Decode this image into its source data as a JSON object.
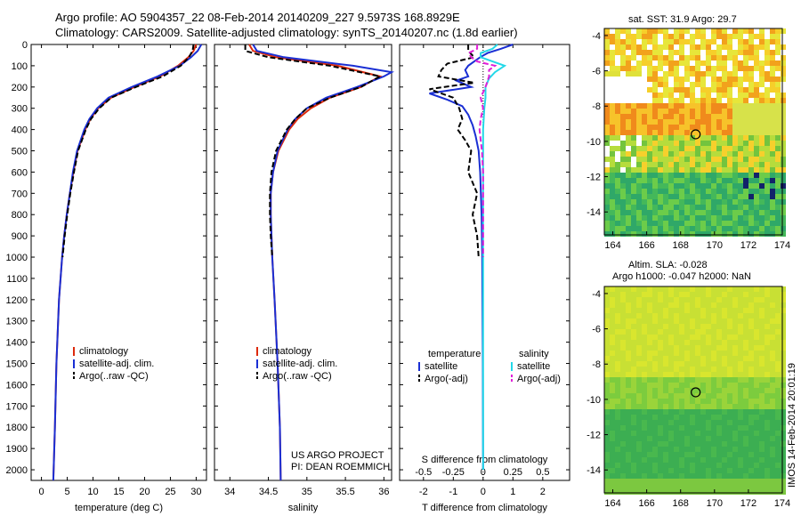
{
  "header": {
    "title_line1": "Argo profile: AO 5904357_22 08-Feb-2014 20140209_227 9.5973S 168.8929E",
    "title_line2": "Climatology: CARS2009. Satellite-adjusted climatology: synTS_20140207.nc (1.8d earlier)"
  },
  "colors": {
    "climatology": "#dd2a0c",
    "satellite": "#1a2fd4",
    "argo": "#000000",
    "sat_salinity": "#22d8e8",
    "argo_salinity": "#e020d8"
  },
  "chart_data": [
    {
      "type": "line",
      "panel": "temperature",
      "xlabel": "temperature (deg C)",
      "xlim": [
        -2,
        32
      ],
      "xticks": [
        0,
        5,
        10,
        15,
        20,
        25,
        30
      ],
      "ylim": [
        2050,
        0
      ],
      "yticks": [
        0,
        100,
        200,
        300,
        400,
        500,
        600,
        700,
        800,
        900,
        1000,
        1100,
        1200,
        1300,
        1400,
        1500,
        1600,
        1700,
        1800,
        1900,
        2000
      ],
      "legend": [
        "climatology",
        "satellite-adj. clim.",
        "Argo(..raw -QC)"
      ],
      "series": [
        {
          "name": "climatology",
          "style": "solid",
          "color": "#dd2a0c",
          "depth": [
            0,
            30,
            60,
            100,
            150,
            200,
            250,
            300,
            350,
            400,
            500,
            600,
            700,
            800,
            900,
            1000,
            1200,
            1500,
            1800,
            2050
          ],
          "values": [
            30,
            29.5,
            28.5,
            26.5,
            23,
            18,
            13.5,
            11,
            9.5,
            8.5,
            7,
            6.2,
            5.5,
            4.9,
            4.4,
            4,
            3.4,
            2.9,
            2.6,
            2.3
          ]
        },
        {
          "name": "satellite-adj. clim.",
          "style": "solid",
          "color": "#1a2fd4",
          "depth": [
            0,
            30,
            60,
            100,
            150,
            200,
            250,
            300,
            350,
            400,
            500,
            600,
            700,
            800,
            900,
            1000,
            1200,
            1500,
            1800,
            2050
          ],
          "values": [
            31,
            30.3,
            29,
            26.8,
            22.5,
            17.5,
            13,
            10.8,
            9.3,
            8.3,
            6.9,
            6.1,
            5.5,
            4.9,
            4.4,
            4,
            3.4,
            2.9,
            2.6,
            2.3
          ]
        },
        {
          "name": "Argo(..raw -QC)",
          "style": "dashed",
          "color": "#000000",
          "depth": [
            0,
            30,
            60,
            100,
            150,
            200,
            250,
            300,
            350,
            400,
            500,
            600,
            700,
            800,
            900,
            1000
          ],
          "values": [
            29.5,
            29.3,
            28.6,
            27,
            23.5,
            18.3,
            13.5,
            11.2,
            9.6,
            8.6,
            7.1,
            6.3,
            5.6,
            5,
            4.5,
            4.1
          ]
        }
      ]
    },
    {
      "type": "line",
      "panel": "salinity",
      "xlabel": "salinity",
      "xlim": [
        33.8,
        36.1
      ],
      "xticks": [
        34,
        34.5,
        35,
        35.5,
        36
      ],
      "ylim": [
        2050,
        0
      ],
      "legend": [
        "climatology",
        "satellite-adj. clim.",
        "Argo(..raw -QC)"
      ],
      "annotation": [
        "US ARGO PROJECT",
        "PI: DEAN ROEMMICH"
      ],
      "series": [
        {
          "name": "climatology",
          "style": "solid",
          "color": "#dd2a0c",
          "depth": [
            0,
            30,
            60,
            100,
            150,
            200,
            250,
            300,
            350,
            400,
            500,
            600,
            700,
            800,
            1000,
            1200,
            1500,
            1800,
            2050
          ],
          "values": [
            34.25,
            34.3,
            34.6,
            35.4,
            35.95,
            35.7,
            35.3,
            35.05,
            34.88,
            34.77,
            34.63,
            34.56,
            34.53,
            34.53,
            34.55,
            34.58,
            34.62,
            34.65,
            34.66
          ]
        },
        {
          "name": "satellite-adj. clim.",
          "style": "solid",
          "color": "#1a2fd4",
          "depth": [
            0,
            30,
            60,
            100,
            130,
            150,
            200,
            250,
            300,
            350,
            400,
            500,
            600,
            700,
            800,
            1000,
            1200,
            1500,
            1800,
            2050
          ],
          "values": [
            34.3,
            34.35,
            34.7,
            35.6,
            36.1,
            36.0,
            35.65,
            35.25,
            35.0,
            34.85,
            34.75,
            34.62,
            34.56,
            34.53,
            34.53,
            34.55,
            34.58,
            34.62,
            34.65,
            34.66
          ]
        },
        {
          "name": "Argo(..raw -QC)",
          "style": "dashed",
          "color": "#000000",
          "depth": [
            0,
            30,
            60,
            100,
            150,
            200,
            250,
            300,
            350,
            400,
            500,
            600,
            700,
            800,
            900,
            1000
          ],
          "values": [
            34.2,
            34.2,
            34.5,
            35.3,
            35.95,
            35.7,
            35.3,
            35.0,
            34.85,
            34.74,
            34.6,
            34.54,
            34.52,
            34.52,
            34.53,
            34.55
          ]
        }
      ]
    },
    {
      "type": "line",
      "panel": "difference",
      "xlabel": "T difference from climatology",
      "xlabel_top": "S difference from climatology",
      "xlim": [
        -2.8,
        2.9
      ],
      "xticks": [
        -2,
        -1,
        0,
        1,
        2
      ],
      "sticks_labels": [
        "-0.5",
        "-0.25",
        "0",
        "0.25",
        "0.5"
      ],
      "sticks_values": [
        -0.5,
        -0.25,
        0,
        0.25,
        0.5
      ],
      "ylim": [
        2050,
        0
      ],
      "legend_temperature_title": "temperature",
      "legend_salinity_title": "salinity",
      "legend": [
        "satellite",
        "Argo(-adj)",
        "satellite",
        "Argo(-adj)"
      ],
      "series": [
        {
          "name": "satellite",
          "quantity": "temperature",
          "style": "solid",
          "color": "#1a2fd4",
          "depth": [
            0,
            20,
            40,
            60,
            80,
            100,
            120,
            150,
            170,
            200,
            230,
            260,
            290,
            330,
            380,
            430,
            500,
            600,
            800,
            1000,
            1500,
            2000
          ],
          "values": [
            1,
            0.6,
            0.15,
            -0.1,
            -0.3,
            -0.5,
            -0.6,
            -0.5,
            -0.9,
            -0.4,
            -1.8,
            -1.2,
            -0.7,
            -0.5,
            -0.35,
            -0.25,
            -0.15,
            -0.1,
            -0.05,
            -0.03,
            -0.01,
            0
          ]
        },
        {
          "name": "Argo(-adj)",
          "quantity": "temperature",
          "style": "dashed",
          "color": "#000000",
          "depth": [
            0,
            30,
            60,
            90,
            120,
            150,
            180,
            210,
            250,
            300,
            350,
            400,
            450,
            500,
            600,
            700,
            800,
            900,
            1000
          ],
          "values": [
            -0.5,
            -0.5,
            -0.3,
            -1.2,
            -1.4,
            -1.5,
            -0.3,
            -1.8,
            -1.0,
            -0.8,
            -0.7,
            -0.85,
            -0.6,
            -0.4,
            -0.5,
            -0.2,
            -0.35,
            -0.2,
            -0.15
          ]
        },
        {
          "name": "satellite",
          "quantity": "salinity",
          "style": "solid",
          "color": "#22d8e8",
          "depth": [
            0,
            20,
            40,
            60,
            80,
            100,
            130,
            160,
            200,
            250,
            300,
            350,
            400,
            500,
            600,
            800,
            1000,
            1500,
            2000
          ],
          "values": [
            0.12,
            0.08,
            -0.02,
            -0.02,
            0.08,
            0.18,
            0.1,
            0.05,
            0.02,
            0.02,
            0.01,
            0.005,
            0,
            0,
            0,
            0,
            0,
            0,
            0
          ]
        },
        {
          "name": "Argo(-adj)",
          "quantity": "salinity",
          "style": "dashed",
          "color": "#e020d8",
          "depth": [
            0,
            20,
            40,
            60,
            80,
            100,
            120,
            150,
            200,
            250,
            300,
            350,
            400,
            450,
            500,
            600,
            700,
            800,
            1000
          ],
          "values": [
            -0.05,
            -0.05,
            -0.12,
            -0.1,
            -0.05,
            0.1,
            0.05,
            0.05,
            0.02,
            -0.02,
            0.0,
            -0.02,
            -0.03,
            -0.02,
            -0.01,
            0,
            0,
            0,
            0
          ]
        }
      ]
    }
  ],
  "maps": {
    "sst_caption": "sat. SST: 31.9 Argo: 29.7",
    "sla_caption_line1": "Altim. SLA: -0.028",
    "sla_caption_line2": "Argo h1000: -0.047 h2000: NaN",
    "xticks": [
      "164",
      "166",
      "168",
      "170",
      "172",
      "174"
    ],
    "yticks": [
      "-4",
      "-6",
      "-8",
      "-10",
      "-12",
      "-14"
    ],
    "float_lon": 168.89,
    "float_lat": -9.6
  },
  "footer": {
    "vertical_stamp": "IMOS 14-Feb-2014 20:01:19"
  }
}
